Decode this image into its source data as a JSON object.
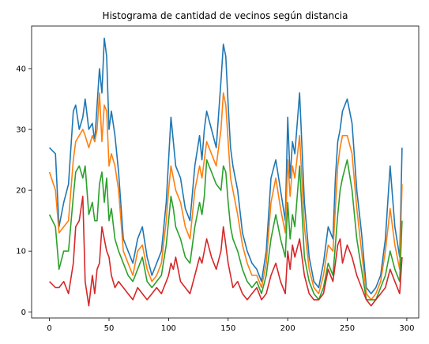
{
  "chart_data": {
    "type": "line",
    "title": "Histograma de cantidad de vecinos según distancia",
    "xlabel": "",
    "ylabel": "",
    "xlim": [
      -15,
      310
    ],
    "ylim": [
      -1,
      47
    ],
    "xticks": [
      0,
      50,
      100,
      150,
      200,
      250,
      300
    ],
    "yticks": [
      0,
      10,
      20,
      30,
      40
    ],
    "grid": false,
    "legend": "none",
    "series": [
      {
        "color": "#1f77b4",
        "x": [
          0,
          5,
          8,
          12,
          16,
          20,
          22,
          25,
          28,
          30,
          33,
          36,
          38,
          40,
          42,
          44,
          46,
          48,
          50,
          52,
          55,
          58,
          62,
          66,
          70,
          74,
          78,
          82,
          86,
          90,
          94,
          98,
          100,
          102,
          104,
          106,
          110,
          114,
          118,
          122,
          126,
          128,
          130,
          132,
          136,
          140,
          144,
          146,
          148,
          150,
          152,
          154,
          158,
          162,
          166,
          170,
          174,
          178,
          182,
          186,
          190,
          194,
          198,
          200,
          202,
          204,
          206,
          210,
          214,
          218,
          222,
          226,
          230,
          234,
          238,
          240,
          242,
          244,
          246,
          250,
          254,
          258,
          262,
          266,
          270,
          274,
          278,
          282,
          286,
          290,
          294,
          296
        ],
        "values": [
          27,
          26,
          14,
          18,
          21,
          33,
          34,
          30,
          32,
          35,
          30,
          31,
          28,
          34,
          40,
          36,
          45,
          42,
          30,
          33,
          29,
          23,
          12,
          10,
          8,
          12,
          14,
          9,
          6,
          8,
          10,
          18,
          25,
          32,
          28,
          24,
          22,
          17,
          15,
          24,
          29,
          25,
          30,
          33,
          30,
          27,
          38,
          44,
          42,
          34,
          27,
          24,
          20,
          13,
          10,
          8,
          7,
          5,
          10,
          22,
          25,
          20,
          15,
          32,
          22,
          28,
          26,
          36,
          18,
          9,
          5,
          4,
          8,
          14,
          12,
          22,
          28,
          30,
          33,
          35,
          31,
          20,
          13,
          4,
          3,
          4,
          6,
          12,
          24,
          14,
          9,
          27
        ]
      },
      {
        "color": "#ff7f0e",
        "x": [
          0,
          5,
          8,
          12,
          16,
          20,
          22,
          25,
          28,
          30,
          33,
          36,
          38,
          40,
          42,
          44,
          46,
          48,
          50,
          52,
          55,
          58,
          62,
          66,
          70,
          74,
          78,
          82,
          86,
          90,
          94,
          98,
          100,
          102,
          104,
          106,
          110,
          114,
          118,
          122,
          126,
          128,
          130,
          132,
          136,
          140,
          144,
          146,
          148,
          150,
          152,
          154,
          158,
          162,
          166,
          170,
          174,
          178,
          182,
          186,
          190,
          194,
          198,
          200,
          202,
          204,
          206,
          210,
          214,
          218,
          222,
          226,
          230,
          234,
          238,
          240,
          242,
          244,
          246,
          250,
          254,
          258,
          262,
          266,
          270,
          274,
          278,
          282,
          286,
          290,
          294,
          296
        ],
        "values": [
          23,
          20,
          13,
          14,
          15,
          25,
          28,
          29,
          30,
          29,
          27,
          29,
          28,
          30,
          36,
          28,
          34,
          33,
          24,
          26,
          24,
          20,
          10,
          8,
          6,
          10,
          11,
          7,
          5,
          6,
          8,
          15,
          20,
          24,
          22,
          20,
          18,
          14,
          12,
          20,
          24,
          22,
          25,
          28,
          26,
          24,
          30,
          36,
          34,
          28,
          22,
          20,
          16,
          11,
          8,
          6,
          6,
          4,
          8,
          18,
          22,
          17,
          13,
          25,
          19,
          24,
          22,
          29,
          14,
          7,
          4,
          3,
          6,
          11,
          10,
          17,
          24,
          27,
          29,
          29,
          26,
          17,
          10,
          3,
          2,
          3,
          5,
          10,
          17,
          11,
          7,
          21
        ]
      },
      {
        "color": "#2ca02c",
        "x": [
          0,
          5,
          8,
          12,
          16,
          20,
          22,
          25,
          28,
          30,
          33,
          36,
          38,
          40,
          42,
          44,
          46,
          48,
          50,
          52,
          55,
          58,
          62,
          66,
          70,
          74,
          78,
          82,
          86,
          90,
          94,
          98,
          100,
          102,
          104,
          106,
          110,
          114,
          118,
          122,
          126,
          128,
          130,
          132,
          136,
          140,
          144,
          146,
          148,
          150,
          152,
          154,
          158,
          162,
          166,
          170,
          174,
          178,
          182,
          186,
          190,
          194,
          198,
          200,
          202,
          204,
          206,
          210,
          214,
          218,
          222,
          226,
          230,
          234,
          238,
          240,
          242,
          244,
          246,
          250,
          254,
          258,
          262,
          266,
          270,
          274,
          278,
          282,
          286,
          290,
          294,
          296
        ],
        "values": [
          16,
          14,
          7,
          10,
          10,
          19,
          23,
          24,
          22,
          24,
          16,
          18,
          15,
          15,
          21,
          23,
          18,
          22,
          15,
          17,
          12,
          10,
          8,
          6,
          5,
          7,
          9,
          5,
          4,
          5,
          6,
          11,
          15,
          19,
          17,
          14,
          12,
          9,
          8,
          14,
          18,
          16,
          19,
          25,
          23,
          21,
          20,
          24,
          23,
          18,
          14,
          12,
          10,
          7,
          5,
          4,
          5,
          3,
          6,
          12,
          16,
          12,
          9,
          18,
          12,
          16,
          14,
          24,
          9,
          5,
          3,
          2,
          4,
          8,
          6,
          11,
          16,
          20,
          22,
          25,
          20,
          12,
          7,
          2,
          2,
          2,
          4,
          6,
          10,
          7,
          5,
          15
        ]
      },
      {
        "color": "#d62728",
        "x": [
          0,
          5,
          8,
          12,
          16,
          20,
          22,
          25,
          28,
          30,
          33,
          36,
          38,
          40,
          42,
          44,
          46,
          48,
          50,
          52,
          55,
          58,
          62,
          66,
          70,
          74,
          78,
          82,
          86,
          90,
          94,
          98,
          100,
          102,
          104,
          106,
          110,
          114,
          118,
          122,
          126,
          128,
          130,
          132,
          136,
          140,
          144,
          146,
          148,
          150,
          152,
          154,
          158,
          162,
          166,
          170,
          174,
          178,
          182,
          186,
          190,
          194,
          198,
          200,
          202,
          204,
          206,
          210,
          214,
          218,
          222,
          226,
          230,
          234,
          238,
          240,
          242,
          244,
          246,
          250,
          254,
          258,
          262,
          266,
          270,
          274,
          278,
          282,
          286,
          290,
          294,
          296
        ],
        "values": [
          5,
          4,
          4,
          5,
          3,
          8,
          14,
          15,
          19,
          5,
          1,
          6,
          3,
          7,
          8,
          14,
          12,
          10,
          9,
          6,
          4,
          5,
          4,
          3,
          2,
          4,
          3,
          2,
          3,
          4,
          3,
          5,
          6,
          8,
          7,
          9,
          5,
          4,
          3,
          6,
          9,
          8,
          10,
          12,
          9,
          7,
          10,
          14,
          11,
          8,
          6,
          4,
          5,
          3,
          2,
          3,
          4,
          2,
          3,
          6,
          8,
          5,
          3,
          10,
          7,
          11,
          9,
          12,
          6,
          3,
          2,
          2,
          3,
          7,
          5,
          8,
          11,
          12,
          8,
          11,
          9,
          6,
          4,
          2,
          1,
          2,
          3,
          4,
          7,
          5,
          3,
          9
        ]
      }
    ]
  }
}
